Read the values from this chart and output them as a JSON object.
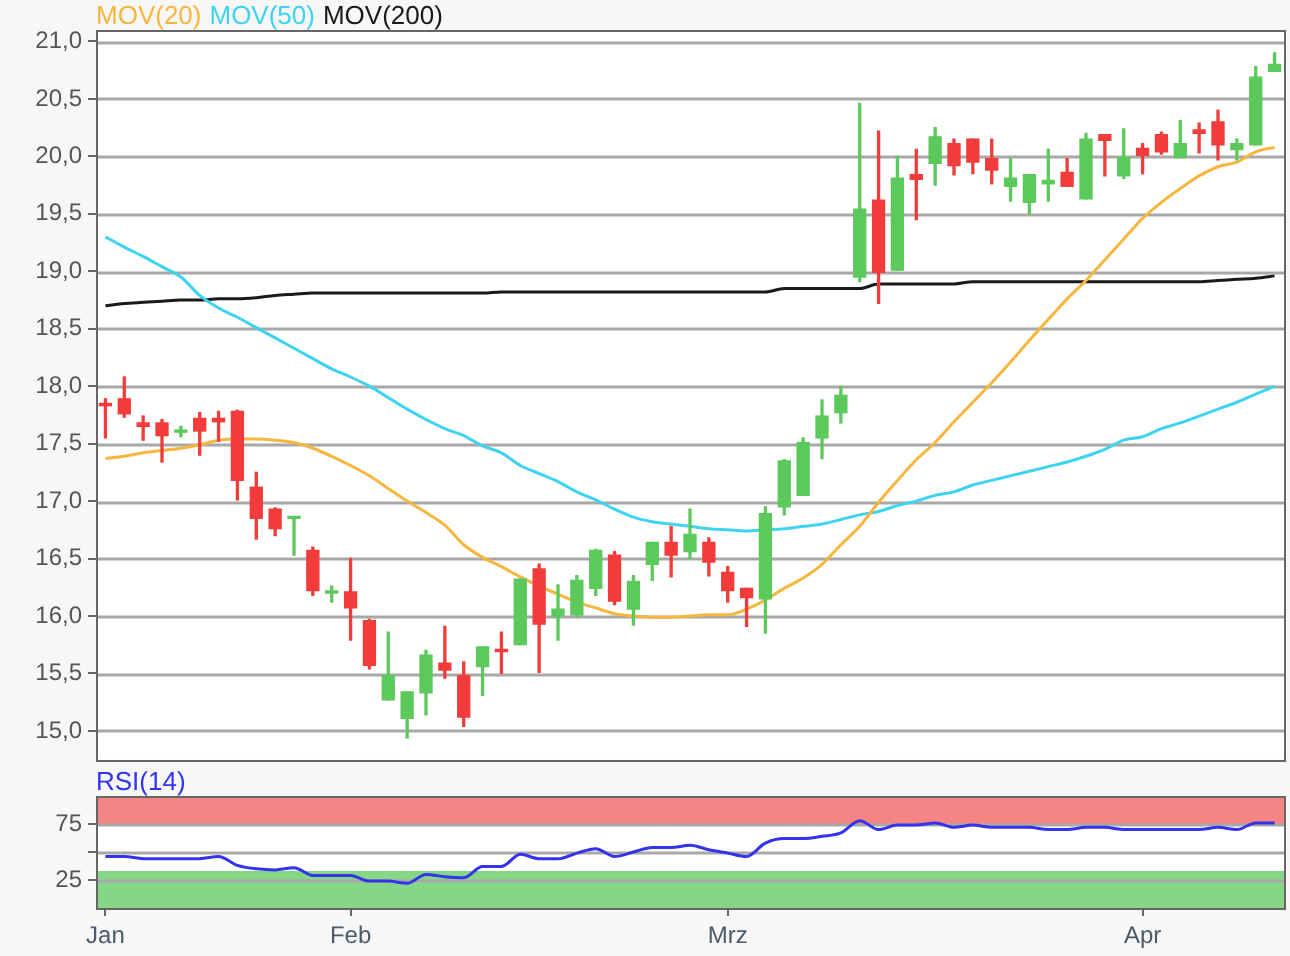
{
  "chart_data": [
    {
      "type": "candlestick",
      "legend": "top left",
      "grid": "y",
      "tick_labels": "y",
      "categories": [
        null,
        null,
        null,
        null,
        null,
        null,
        null,
        null,
        null,
        null,
        null,
        null,
        null,
        null,
        null,
        null,
        null,
        null,
        null,
        null,
        null,
        null,
        null,
        null,
        null,
        null,
        null,
        null,
        null,
        null,
        null,
        null,
        null,
        null,
        null,
        null,
        null,
        null,
        null,
        null,
        null,
        null,
        null,
        null,
        null,
        null,
        null,
        null,
        null,
        null,
        null,
        null,
        null,
        null,
        null,
        null,
        null,
        null,
        null,
        null,
        null,
        null,
        null
      ],
      "ylim": [
        14.75,
        21.1
      ],
      "yticks": [
        {
          "value": 15,
          "label": "15,0"
        },
        {
          "value": 15.5,
          "label": "15,5"
        },
        {
          "value": 16,
          "label": "16,0"
        },
        {
          "value": 16.5,
          "label": "16,5"
        },
        {
          "value": 17,
          "label": "17,0"
        },
        {
          "value": 17.5,
          "label": "17,5"
        },
        {
          "value": 18,
          "label": "18,0"
        },
        {
          "value": 18.5,
          "label": "18,5"
        },
        {
          "value": 19,
          "label": "19,0"
        },
        {
          "value": 19.5,
          "label": "19,5"
        },
        {
          "value": 20,
          "label": "20,0"
        },
        {
          "value": 20.5,
          "label": "20,5"
        },
        {
          "value": 21,
          "label": "21,0"
        }
      ],
      "ohlc": [
        [
          17.85,
          17.89,
          17.55,
          17.83
        ],
        [
          17.89,
          18.08,
          17.73,
          17.76
        ],
        [
          17.68,
          17.74,
          17.53,
          17.65
        ],
        [
          17.68,
          17.71,
          17.34,
          17.57
        ],
        [
          17.6,
          17.65,
          17.56,
          17.61
        ],
        [
          17.72,
          17.77,
          17.4,
          17.61
        ],
        [
          17.72,
          17.78,
          17.52,
          17.69
        ],
        [
          17.78,
          17.79,
          17.01,
          17.18
        ],
        [
          17.12,
          17.25,
          16.67,
          16.85
        ],
        [
          16.93,
          16.94,
          16.7,
          16.76
        ],
        [
          16.85,
          16.86,
          16.53,
          16.86
        ],
        [
          16.57,
          16.6,
          16.18,
          16.22
        ],
        [
          16.2,
          16.26,
          16.12,
          16.21
        ],
        [
          16.21,
          16.5,
          15.79,
          16.07
        ],
        [
          15.96,
          15.97,
          15.54,
          15.57
        ],
        [
          15.27,
          15.86,
          15.27,
          15.48
        ],
        [
          15.11,
          15.34,
          14.94,
          15.34
        ],
        [
          15.33,
          15.7,
          15.14,
          15.66
        ],
        [
          15.59,
          15.91,
          15.46,
          15.53
        ],
        [
          15.48,
          15.6,
          15.04,
          15.12
        ],
        [
          15.56,
          15.73,
          15.31,
          15.73
        ],
        [
          15.71,
          15.86,
          15.5,
          15.69
        ],
        [
          15.75,
          16.32,
          15.75,
          16.32
        ],
        [
          16.41,
          16.45,
          15.51,
          15.93
        ],
        [
          16,
          16.27,
          15.79,
          16.06
        ],
        [
          16.01,
          16.35,
          15.99,
          16.31
        ],
        [
          16.24,
          16.58,
          16.18,
          16.57
        ],
        [
          16.53,
          16.56,
          16.1,
          16.13
        ],
        [
          16.06,
          16.35,
          15.92,
          16.3
        ],
        [
          16.45,
          16.64,
          16.31,
          16.64
        ],
        [
          16.64,
          16.78,
          16.34,
          16.53
        ],
        [
          16.56,
          16.93,
          16.5,
          16.71
        ],
        [
          16.64,
          16.68,
          16.35,
          16.47
        ],
        [
          16.38,
          16.43,
          16.12,
          16.22
        ],
        [
          16.24,
          16.24,
          15.91,
          16.16
        ],
        [
          16.15,
          16.95,
          15.85,
          16.89
        ],
        [
          16.95,
          17.36,
          16.88,
          17.35
        ],
        [
          17.05,
          17.55,
          17.05,
          17.51
        ],
        [
          17.55,
          17.88,
          17.37,
          17.74
        ],
        [
          17.77,
          18,
          17.68,
          17.92
        ],
        [
          18.95,
          20.46,
          18.91,
          19.54
        ],
        [
          19.62,
          20.22,
          18.72,
          18.99
        ],
        [
          19.01,
          20,
          19.01,
          19.81
        ],
        [
          19.84,
          20.06,
          19.45,
          19.8
        ],
        [
          19.94,
          20.25,
          19.75,
          20.17
        ],
        [
          20.11,
          20.15,
          19.84,
          19.92
        ],
        [
          20.15,
          20.15,
          19.85,
          19.95
        ],
        [
          19.98,
          20.15,
          19.76,
          19.88
        ],
        [
          19.74,
          19.98,
          19.61,
          19.81
        ],
        [
          19.6,
          19.84,
          19.5,
          19.84
        ],
        [
          19.76,
          20.06,
          19.61,
          19.79
        ],
        [
          19.86,
          19.98,
          19.74,
          19.74
        ],
        [
          19.63,
          20.2,
          19.63,
          20.15
        ],
        [
          20.19,
          20.19,
          19.83,
          20.14
        ],
        [
          19.83,
          20.24,
          19.81,
          19.99
        ],
        [
          20.07,
          20.11,
          19.85,
          20.01
        ],
        [
          20.19,
          20.21,
          20.02,
          20.04
        ],
        [
          19.99,
          20.31,
          19.99,
          20.11
        ],
        [
          20.23,
          20.29,
          20.03,
          20.2
        ],
        [
          20.3,
          20.4,
          19.97,
          20.1
        ],
        [
          20.06,
          20.15,
          19.97,
          20.11
        ],
        [
          20.1,
          20.78,
          20.1,
          20.69
        ],
        [
          20.74,
          20.9,
          20.74,
          20.8
        ]
      ],
      "colors": [
        "#f23b3b",
        "#f23b3b",
        "#f23b3b",
        "#f23b3b",
        "#5cc95c",
        "#f23b3b",
        "#f23b3b",
        "#f23b3b",
        "#f23b3b",
        "#f23b3b",
        "#5cc95c",
        "#f23b3b",
        "#5cc95c",
        "#f23b3b",
        "#f23b3b",
        "#5cc95c",
        "#5cc95c",
        "#5cc95c",
        "#f23b3b",
        "#f23b3b",
        "#5cc95c",
        "#f23b3b",
        "#5cc95c",
        "#f23b3b",
        "#5cc95c",
        "#5cc95c",
        "#5cc95c",
        "#f23b3b",
        "#5cc95c",
        "#5cc95c",
        "#f23b3b",
        "#5cc95c",
        "#f23b3b",
        "#f23b3b",
        "#f23b3b",
        "#5cc95c",
        "#5cc95c",
        "#5cc95c",
        "#5cc95c",
        "#5cc95c",
        "#5cc95c",
        "#f23b3b",
        "#5cc95c",
        "#f23b3b",
        "#5cc95c",
        "#f23b3b",
        "#f23b3b",
        "#f23b3b",
        "#5cc95c",
        "#5cc95c",
        "#5cc95c",
        "#f23b3b",
        "#5cc95c",
        "#f23b3b",
        "#5cc95c",
        "#f23b3b",
        "#f23b3b",
        "#5cc95c",
        "#f23b3b",
        "#f23b3b",
        "#5cc95c",
        "#5cc95c",
        "#5cc95c"
      ],
      "series": [
        {
          "name": "MOV(20)",
          "type": "line",
          "color": "#f7b73f",
          "values": [
            17.37,
            17.39,
            17.42,
            17.44,
            17.46,
            17.49,
            17.53,
            17.54,
            17.54,
            17.53,
            17.51,
            17.46,
            17.39,
            17.31,
            17.22,
            17.11,
            17.0,
            16.9,
            16.79,
            16.62,
            16.51,
            16.43,
            16.34,
            16.26,
            16.19,
            16.12,
            16.07,
            16.02,
            16.0,
            15.99,
            15.99,
            16.0,
            16.01,
            16.01,
            16.06,
            16.14,
            16.24,
            16.33,
            16.45,
            16.62,
            16.78,
            16.99,
            17.18,
            17.36,
            17.51,
            17.69,
            17.86,
            18.03,
            18.21,
            18.4,
            18.58,
            18.76,
            18.92,
            19.1,
            19.28,
            19.46,
            19.6,
            19.72,
            19.83,
            19.91,
            19.95,
            20.04,
            20.08
          ]
        },
        {
          "name": "MOV(50)",
          "type": "line",
          "color": "#3fd3f2",
          "values": [
            19.3,
            19.21,
            19.13,
            19.04,
            18.95,
            18.79,
            18.68,
            18.6,
            18.51,
            18.42,
            18.33,
            18.24,
            18.15,
            18.08,
            18.0,
            17.9,
            17.8,
            17.71,
            17.63,
            17.57,
            17.48,
            17.42,
            17.31,
            17.24,
            17.17,
            17.08,
            17.01,
            16.93,
            16.86,
            16.82,
            16.8,
            16.78,
            16.76,
            16.75,
            16.74,
            16.75,
            16.76,
            16.78,
            16.8,
            16.84,
            16.88,
            16.91,
            16.96,
            17.0,
            17.05,
            17.08,
            17.14,
            17.18,
            17.22,
            17.26,
            17.3,
            17.34,
            17.39,
            17.45,
            17.53,
            17.56,
            17.63,
            17.68,
            17.74,
            17.8,
            17.86,
            17.93,
            18.0
          ]
        },
        {
          "name": "MOV(200)",
          "type": "line",
          "color": "#1a1a1a",
          "values": [
            18.7,
            18.72,
            18.73,
            18.74,
            18.75,
            18.75,
            18.76,
            18.76,
            18.77,
            18.79,
            18.8,
            18.81,
            18.81,
            18.81,
            18.81,
            18.81,
            18.81,
            18.81,
            18.81,
            18.81,
            18.81,
            18.82,
            18.82,
            18.82,
            18.82,
            18.82,
            18.82,
            18.82,
            18.82,
            18.82,
            18.82,
            18.82,
            18.82,
            18.82,
            18.82,
            18.82,
            18.85,
            18.85,
            18.85,
            18.85,
            18.85,
            18.89,
            18.89,
            18.89,
            18.89,
            18.89,
            18.91,
            18.91,
            18.91,
            18.91,
            18.91,
            18.91,
            18.91,
            18.91,
            18.91,
            18.91,
            18.91,
            18.91,
            18.91,
            18.92,
            18.93,
            18.94,
            18.96
          ]
        }
      ]
    },
    {
      "type": "line",
      "legend": "top left",
      "grid": "y",
      "categories": [
        "Jan",
        null,
        null,
        null,
        null,
        null,
        null,
        null,
        null,
        null,
        null,
        null,
        null,
        "Feb",
        null,
        null,
        null,
        null,
        null,
        null,
        null,
        null,
        null,
        null,
        null,
        null,
        null,
        null,
        null,
        null,
        null,
        null,
        null,
        "Mrz",
        null,
        null,
        null,
        null,
        null,
        null,
        null,
        null,
        null,
        null,
        null,
        null,
        null,
        null,
        null,
        null,
        null,
        null,
        null,
        null,
        null,
        "Apr",
        null,
        null,
        null,
        null,
        null,
        null,
        null
      ],
      "ylim": [
        0,
        100
      ],
      "yticks": [
        25,
        {
          "value": 50,
          "label": null
        },
        75
      ],
      "bands": [
        {
          "axis": "y",
          "from": 75,
          "to": 100,
          "color": "#f58585"
        },
        {
          "axis": "y",
          "from": 0,
          "to": 33,
          "color": "#85d785"
        }
      ],
      "series": [
        {
          "name": "RSI(14)",
          "color": "#3333ee",
          "values": [
            46,
            46,
            44,
            44,
            44,
            44,
            46,
            38,
            35,
            34,
            36,
            29,
            29,
            29,
            24,
            24,
            22,
            30,
            28,
            27,
            37,
            37,
            48,
            44,
            44,
            49,
            53,
            46,
            50,
            54,
            54,
            56,
            52,
            49,
            46,
            58,
            62,
            62,
            64,
            67,
            78,
            70,
            74,
            74,
            76,
            72,
            74,
            72,
            72,
            72,
            70,
            70,
            72,
            72,
            70,
            70,
            70,
            70,
            70,
            72,
            70,
            76,
            76
          ]
        }
      ]
    }
  ]
}
